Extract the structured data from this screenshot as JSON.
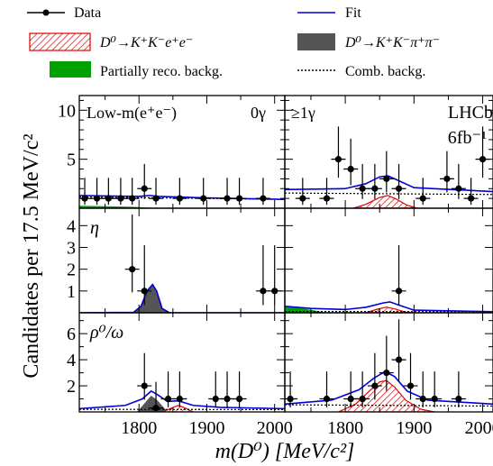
{
  "legend": {
    "data": "Data",
    "fit": "Fit",
    "signal": "D⁰→K⁺K⁻e⁺e⁻",
    "peaking": "D⁰→K⁺K⁻π⁺π⁻",
    "partial": "Partially reco. backg.",
    "comb": "Comb. backg."
  },
  "colors": {
    "fit": "#0000dd",
    "signal": "#e00000",
    "peaking": "#555555",
    "partial": "#00a000",
    "comb": "#000000"
  },
  "chart_data": {
    "type": "scatter",
    "xlabel": "m(D⁰) [MeV/c²]",
    "ylabel": "Candidates per 17.5 MeV/c²",
    "xlim": [
      1712,
      2015
    ],
    "x_ticks": [
      "1800",
      "1900",
      "2000"
    ],
    "rows": [
      {
        "label": "Low-m(e⁺e⁻)",
        "ylim": [
          0,
          11.5
        ],
        "yticks": [
          "5",
          "10"
        ]
      },
      {
        "label": "η",
        "ylim": [
          0,
          4.8
        ],
        "yticks": [
          "1",
          "2",
          "3",
          "4"
        ]
      },
      {
        "label": "ρ⁰/ω",
        "ylim": [
          0,
          7.6
        ],
        "yticks": [
          "2",
          "4",
          "6"
        ]
      }
    ],
    "columns": [
      {
        "label": "0γ"
      },
      {
        "label": "≥1γ"
      }
    ],
    "annotation": {
      "experiment": "LHCb",
      "lumi": "6fb⁻¹"
    },
    "panels": [
      {
        "row": 0,
        "col": 0,
        "points": [
          {
            "x": 1720,
            "y": 1
          },
          {
            "x": 1738,
            "y": 1
          },
          {
            "x": 1755,
            "y": 1
          },
          {
            "x": 1773,
            "y": 1
          },
          {
            "x": 1790,
            "y": 1
          },
          {
            "x": 1808,
            "y": 2
          },
          {
            "x": 1825,
            "y": 1
          },
          {
            "x": 1860,
            "y": 1
          },
          {
            "x": 1895,
            "y": 1
          },
          {
            "x": 1930,
            "y": 1
          },
          {
            "x": 1948,
            "y": 1
          },
          {
            "x": 1983,
            "y": 1
          }
        ],
        "fit": [
          [
            1712,
            1.3
          ],
          [
            1800,
            1.2
          ],
          [
            1815,
            1.3
          ],
          [
            1830,
            1.2
          ],
          [
            1900,
            1.05
          ],
          [
            2015,
            0.9
          ]
        ],
        "comb": [
          [
            1712,
            1.15
          ],
          [
            2015,
            0.9
          ]
        ],
        "signal": [],
        "peaking": []
      },
      {
        "row": 0,
        "col": 1,
        "points": [
          {
            "x": 1738,
            "y": 1
          },
          {
            "x": 1773,
            "y": 1
          },
          {
            "x": 1790,
            "y": 5
          },
          {
            "x": 1808,
            "y": 4
          },
          {
            "x": 1825,
            "y": 2
          },
          {
            "x": 1843,
            "y": 2
          },
          {
            "x": 1860,
            "y": 3
          },
          {
            "x": 1878,
            "y": 2
          },
          {
            "x": 1913,
            "y": 1
          },
          {
            "x": 1948,
            "y": 3
          },
          {
            "x": 1965,
            "y": 2
          },
          {
            "x": 1983,
            "y": 1
          },
          {
            "x": 2000,
            "y": 5
          }
        ],
        "fit": [
          [
            1712,
            1.9
          ],
          [
            1800,
            2.0
          ],
          [
            1830,
            2.5
          ],
          [
            1850,
            3.2
          ],
          [
            1862,
            3.3
          ],
          [
            1875,
            2.9
          ],
          [
            1900,
            2.1
          ],
          [
            2015,
            1.7
          ]
        ],
        "comb": [
          [
            1712,
            1.55
          ],
          [
            2015,
            1.4
          ]
        ],
        "signal": [
          [
            1812,
            0
          ],
          [
            1830,
            0.4
          ],
          [
            1850,
            1.1
          ],
          [
            1862,
            1.3
          ],
          [
            1875,
            0.9
          ],
          [
            1890,
            0.3
          ],
          [
            1905,
            0
          ]
        ],
        "peaking": []
      },
      {
        "row": 1,
        "col": 0,
        "points": [
          {
            "x": 1790,
            "y": 2
          },
          {
            "x": 1808,
            "y": 1
          },
          {
            "x": 1983,
            "y": 1
          },
          {
            "x": 2000,
            "y": 1
          }
        ],
        "fit": [
          [
            1712,
            0
          ],
          [
            1792,
            0.02
          ],
          [
            1803,
            0.3
          ],
          [
            1812,
            1.0
          ],
          [
            1820,
            1.3
          ],
          [
            1826,
            1.0
          ],
          [
            1834,
            0.2
          ],
          [
            1845,
            0
          ],
          [
            2015,
            0
          ]
        ],
        "comb": [],
        "signal": [],
        "peaking": [
          [
            1794,
            0
          ],
          [
            1803,
            0.3
          ],
          [
            1812,
            1.0
          ],
          [
            1820,
            1.28
          ],
          [
            1826,
            0.95
          ],
          [
            1834,
            0.2
          ],
          [
            1845,
            0
          ]
        ]
      },
      {
        "row": 1,
        "col": 1,
        "points": [
          {
            "x": 1878,
            "y": 1
          }
        ],
        "fit": [
          [
            1712,
            0.3
          ],
          [
            1750,
            0.2
          ],
          [
            1800,
            0.15
          ],
          [
            1830,
            0.25
          ],
          [
            1855,
            0.45
          ],
          [
            1865,
            0.5
          ],
          [
            1878,
            0.35
          ],
          [
            1900,
            0.12
          ],
          [
            2015,
            0.05
          ]
        ],
        "comb": [
          [
            1712,
            0.06
          ],
          [
            2015,
            0.05
          ]
        ],
        "signal": [
          [
            1830,
            0
          ],
          [
            1845,
            0.15
          ],
          [
            1860,
            0.26
          ],
          [
            1872,
            0.18
          ],
          [
            1888,
            0.03
          ],
          [
            1900,
            0
          ]
        ],
        "peaking": []
      },
      {
        "row": 2,
        "col": 0,
        "points": [
          {
            "x": 1808,
            "y": 2
          },
          {
            "x": 1825,
            "y": 0.3
          },
          {
            "x": 1843,
            "y": 1
          },
          {
            "x": 1860,
            "y": 1
          },
          {
            "x": 1913,
            "y": 1
          },
          {
            "x": 1930,
            "y": 1
          },
          {
            "x": 1948,
            "y": 1
          }
        ],
        "fit": [
          [
            1712,
            0.25
          ],
          [
            1780,
            0.5
          ],
          [
            1805,
            1.0
          ],
          [
            1818,
            1.6
          ],
          [
            1828,
            1.3
          ],
          [
            1842,
            0.8
          ],
          [
            1858,
            0.85
          ],
          [
            1880,
            0.5
          ],
          [
            1920,
            0.35
          ],
          [
            2015,
            0.25
          ]
        ],
        "comb": [
          [
            1712,
            0.2
          ],
          [
            2015,
            0.18
          ]
        ],
        "signal": [
          [
            1835,
            0
          ],
          [
            1848,
            0.3
          ],
          [
            1858,
            0.5
          ],
          [
            1868,
            0.3
          ],
          [
            1880,
            0
          ]
        ],
        "peaking": [
          [
            1798,
            0
          ],
          [
            1808,
            0.6
          ],
          [
            1818,
            1.2
          ],
          [
            1826,
            0.9
          ],
          [
            1838,
            0.2
          ],
          [
            1848,
            0
          ]
        ]
      },
      {
        "row": 2,
        "col": 1,
        "points": [
          {
            "x": 1720,
            "y": 1
          },
          {
            "x": 1773,
            "y": 1
          },
          {
            "x": 1808,
            "y": 1
          },
          {
            "x": 1825,
            "y": 1
          },
          {
            "x": 1843,
            "y": 2
          },
          {
            "x": 1860,
            "y": 3
          },
          {
            "x": 1878,
            "y": 4
          },
          {
            "x": 1895,
            "y": 2
          },
          {
            "x": 1913,
            "y": 1
          },
          {
            "x": 1930,
            "y": 1
          },
          {
            "x": 1965,
            "y": 1
          }
        ],
        "fit": [
          [
            1712,
            0.6
          ],
          [
            1780,
            0.9
          ],
          [
            1820,
            1.7
          ],
          [
            1842,
            2.6
          ],
          [
            1858,
            3.1
          ],
          [
            1872,
            2.7
          ],
          [
            1890,
            1.6
          ],
          [
            1920,
            0.9
          ],
          [
            2015,
            0.6
          ]
        ],
        "comb": [
          [
            1712,
            0.55
          ],
          [
            2015,
            0.45
          ]
        ],
        "signal": [
          [
            1790,
            0
          ],
          [
            1815,
            0.6
          ],
          [
            1835,
            1.6
          ],
          [
            1850,
            2.3
          ],
          [
            1860,
            2.4
          ],
          [
            1872,
            1.9
          ],
          [
            1888,
            0.9
          ],
          [
            1910,
            0.2
          ],
          [
            1930,
            0
          ]
        ],
        "peaking": []
      }
    ]
  }
}
